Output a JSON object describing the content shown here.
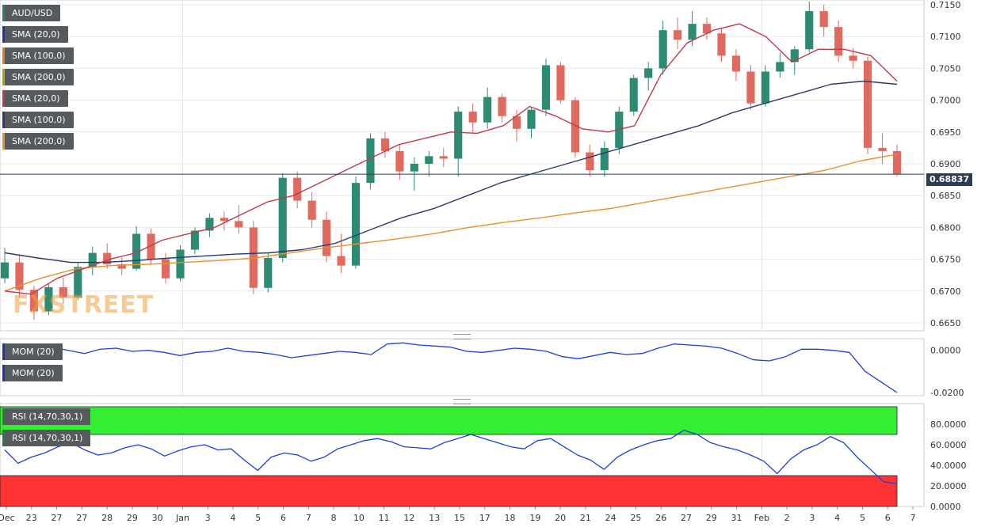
{
  "legend_main": [
    {
      "label": "AUD/USD",
      "color": "#2e7d6f"
    },
    {
      "label": "SMA (20,0)",
      "color": "#2233aa"
    },
    {
      "label": "SMA (100,0)",
      "color": "#e07b20"
    },
    {
      "label": "SMA (200,0)",
      "color": "#b8a400"
    },
    {
      "label": "SMA (20,0)",
      "color": "#c0394b"
    },
    {
      "label": "SMA (100,0)",
      "color": "#2b3a6b"
    },
    {
      "label": "SMA (200,0)",
      "color": "#e8902a"
    }
  ],
  "legend_mom": [
    {
      "label": "MOM (20)",
      "color": "#2233aa"
    },
    {
      "label": "MOM (20)",
      "color": "#2233aa"
    }
  ],
  "legend_rsi": [
    {
      "label": "RSI (14,70,30,1)",
      "color": "#2e7d32"
    },
    {
      "label": "RSI (14,70,30,1)",
      "color": "#2e7d32"
    }
  ],
  "current_price": "0.68837",
  "watermark": "FXSTREET",
  "colors": {
    "bull": "#2e8b73",
    "bear": "#e06a5f",
    "sma20": "#c0394b",
    "sma100": "#2b3a6b",
    "sma200": "#e8902a",
    "indicator": "#1f3fd6",
    "rsi_overbought": "#33ee33",
    "rsi_oversold": "#ff3333"
  },
  "chart_data": [
    {
      "type": "candlestick",
      "symbol": "AUD/USD",
      "x_tick_labels": [
        "Dec",
        "23",
        "27",
        "27",
        "28",
        "29",
        "30",
        "Jan",
        "3",
        "4",
        "5",
        "6",
        "7",
        "8",
        "10",
        "11",
        "12",
        "13",
        "15",
        "17",
        "18",
        "19",
        "20",
        "21",
        "24",
        "25",
        "26",
        "27",
        "29",
        "31",
        "Feb",
        "2",
        "3",
        "4",
        "5",
        "6",
        "7"
      ],
      "y_tick_labels": [
        "0.7150",
        "0.7100",
        "0.7050",
        "0.7000",
        "0.6950",
        "0.6900",
        "0.6850",
        "0.6800",
        "0.6750",
        "0.6700",
        "0.6650"
      ],
      "ylim": [
        0.664,
        0.7155
      ],
      "series": [
        {
          "name": "SMA (20,0)",
          "values": [
            0.67,
            0.6695,
            0.672,
            0.6735,
            0.675,
            0.676,
            0.678,
            0.679,
            0.68,
            0.682,
            0.684,
            0.685,
            0.687,
            0.689,
            0.691,
            0.693,
            0.694,
            0.695,
            0.6948,
            0.696,
            0.699,
            0.6975,
            0.6955,
            0.695,
            0.696,
            0.704,
            0.709,
            0.711,
            0.712,
            0.71,
            0.706,
            0.708,
            0.708,
            0.707,
            0.703
          ]
        },
        {
          "name": "SMA (100,0)",
          "values": [
            0.676,
            0.6752,
            0.6745,
            0.6745,
            0.6748,
            0.6752,
            0.6755,
            0.6758,
            0.676,
            0.6765,
            0.6775,
            0.6795,
            0.6815,
            0.683,
            0.685,
            0.687,
            0.6885,
            0.69,
            0.6915,
            0.693,
            0.6945,
            0.696,
            0.698,
            0.6995,
            0.701,
            0.7025,
            0.703,
            0.7025
          ]
        },
        {
          "name": "SMA (200,0)",
          "values": [
            0.67,
            0.672,
            0.6735,
            0.674,
            0.6742,
            0.6745,
            0.6748,
            0.6752,
            0.676,
            0.6768,
            0.6775,
            0.6782,
            0.679,
            0.68,
            0.6808,
            0.6815,
            0.6823,
            0.683,
            0.684,
            0.685,
            0.686,
            0.687,
            0.688,
            0.689,
            0.6905,
            0.6915
          ]
        }
      ],
      "ohlc": [
        [
          0.672,
          0.6768,
          0.6712,
          0.6745
        ],
        [
          0.6745,
          0.6758,
          0.669,
          0.6702
        ],
        [
          0.6702,
          0.6708,
          0.6655,
          0.6668
        ],
        [
          0.6668,
          0.6712,
          0.6662,
          0.6706
        ],
        [
          0.6706,
          0.6722,
          0.668,
          0.669
        ],
        [
          0.669,
          0.6745,
          0.6686,
          0.6738
        ],
        [
          0.6738,
          0.677,
          0.6725,
          0.676
        ],
        [
          0.676,
          0.6775,
          0.6735,
          0.6742
        ],
        [
          0.6742,
          0.6752,
          0.6725,
          0.6735
        ],
        [
          0.6735,
          0.6802,
          0.6732,
          0.679
        ],
        [
          0.679,
          0.6798,
          0.6742,
          0.675
        ],
        [
          0.675,
          0.676,
          0.6712,
          0.672
        ],
        [
          0.672,
          0.6772,
          0.6715,
          0.6765
        ],
        [
          0.6765,
          0.68,
          0.6758,
          0.6795
        ],
        [
          0.6795,
          0.6822,
          0.6785,
          0.6815
        ],
        [
          0.6815,
          0.6825,
          0.6795,
          0.681
        ],
        [
          0.681,
          0.6835,
          0.679,
          0.68
        ],
        [
          0.68,
          0.681,
          0.6695,
          0.6705
        ],
        [
          0.6705,
          0.676,
          0.6698,
          0.6752
        ],
        [
          0.6752,
          0.6885,
          0.6745,
          0.6878
        ],
        [
          0.6878,
          0.6888,
          0.683,
          0.6842
        ],
        [
          0.6842,
          0.6856,
          0.68,
          0.6812
        ],
        [
          0.6812,
          0.6825,
          0.6745,
          0.6755
        ],
        [
          0.6755,
          0.679,
          0.6728,
          0.674
        ],
        [
          0.674,
          0.688,
          0.6735,
          0.687
        ],
        [
          0.687,
          0.6948,
          0.686,
          0.694
        ],
        [
          0.694,
          0.695,
          0.691,
          0.692
        ],
        [
          0.692,
          0.693,
          0.6875,
          0.6888
        ],
        [
          0.6888,
          0.691,
          0.6858,
          0.69
        ],
        [
          0.69,
          0.692,
          0.688,
          0.6912
        ],
        [
          0.6912,
          0.6925,
          0.6895,
          0.6908
        ],
        [
          0.6908,
          0.699,
          0.688,
          0.6982
        ],
        [
          0.6982,
          0.6995,
          0.695,
          0.6965
        ],
        [
          0.6965,
          0.702,
          0.6955,
          0.7005
        ],
        [
          0.7005,
          0.701,
          0.6965,
          0.6975
        ],
        [
          0.6975,
          0.6985,
          0.6935,
          0.6955
        ],
        [
          0.6955,
          0.699,
          0.694,
          0.6985
        ],
        [
          0.6985,
          0.7065,
          0.6975,
          0.7055
        ],
        [
          0.7055,
          0.706,
          0.6995,
          0.7
        ],
        [
          0.7,
          0.7005,
          0.691,
          0.6918
        ],
        [
          0.6918,
          0.693,
          0.688,
          0.689
        ],
        [
          0.689,
          0.6935,
          0.688,
          0.6925
        ],
        [
          0.6925,
          0.699,
          0.6915,
          0.6982
        ],
        [
          0.6982,
          0.704,
          0.6975,
          0.7035
        ],
        [
          0.7035,
          0.706,
          0.7015,
          0.705
        ],
        [
          0.705,
          0.7125,
          0.704,
          0.711
        ],
        [
          0.711,
          0.713,
          0.708,
          0.7095
        ],
        [
          0.7095,
          0.714,
          0.7085,
          0.712
        ],
        [
          0.712,
          0.713,
          0.7095,
          0.7105
        ],
        [
          0.7105,
          0.7112,
          0.706,
          0.707
        ],
        [
          0.707,
          0.708,
          0.703,
          0.7045
        ],
        [
          0.7045,
          0.7055,
          0.6985,
          0.6995
        ],
        [
          0.6995,
          0.7055,
          0.699,
          0.7045
        ],
        [
          0.7045,
          0.7075,
          0.7035,
          0.706
        ],
        [
          0.706,
          0.7085,
          0.704,
          0.708
        ],
        [
          0.708,
          0.7155,
          0.7075,
          0.714
        ],
        [
          0.714,
          0.715,
          0.71,
          0.7115
        ],
        [
          0.7115,
          0.7125,
          0.706,
          0.707
        ],
        [
          0.707,
          0.7082,
          0.705,
          0.7062
        ],
        [
          0.7062,
          0.7068,
          0.6915,
          0.6925
        ],
        [
          0.6925,
          0.6948,
          0.69,
          0.692
        ],
        [
          0.692,
          0.693,
          0.688,
          0.6884
        ]
      ]
    },
    {
      "type": "line",
      "name": "MOM (20)",
      "y_tick_labels": [
        "0.0000",
        "-0.0200"
      ],
      "ylim": [
        -0.02,
        0.004
      ],
      "values": [
        0.002,
        0.001,
        -0.0005,
        0.0015,
        0.0,
        -0.0015,
        0.0005,
        0.001,
        -0.0005,
        0.0,
        -0.001,
        -0.0025,
        -0.001,
        -0.0005,
        0.001,
        -0.0005,
        -0.001,
        -0.002,
        -0.0035,
        -0.0025,
        -0.0015,
        -0.0005,
        -0.001,
        -0.002,
        0.003,
        0.0035,
        0.0025,
        0.002,
        0.0015,
        -0.0005,
        -0.001,
        0.0,
        0.001,
        0.0005,
        -0.0005,
        -0.003,
        -0.004,
        -0.0025,
        -0.001,
        -0.002,
        -0.0015,
        0.001,
        0.003,
        0.0025,
        0.002,
        0.001,
        -0.0015,
        -0.0045,
        -0.005,
        -0.003,
        0.0005,
        0.0005,
        0.0,
        -0.001,
        -0.01,
        -0.015,
        -0.02
      ]
    },
    {
      "type": "line",
      "name": "RSI (14,70,30,1)",
      "y_tick_labels": [
        "80.0000",
        "60.0000",
        "40.0000",
        "20.0000",
        "0.0000"
      ],
      "ylim": [
        0,
        100
      ],
      "bands": {
        "overbought": 70,
        "oversold": 30
      },
      "values": [
        55,
        42,
        48,
        52,
        58,
        62,
        55,
        50,
        52,
        57,
        60,
        56,
        49,
        54,
        58,
        60,
        55,
        56,
        45,
        35,
        48,
        52,
        50,
        44,
        48,
        56,
        60,
        64,
        66,
        63,
        58,
        57,
        56,
        62,
        66,
        70,
        66,
        62,
        58,
        56,
        64,
        66,
        58,
        50,
        45,
        36,
        48,
        55,
        60,
        64,
        66,
        74,
        70,
        62,
        58,
        55,
        50,
        44,
        32,
        46,
        55,
        60,
        68,
        62,
        48,
        36,
        24,
        22
      ]
    }
  ]
}
